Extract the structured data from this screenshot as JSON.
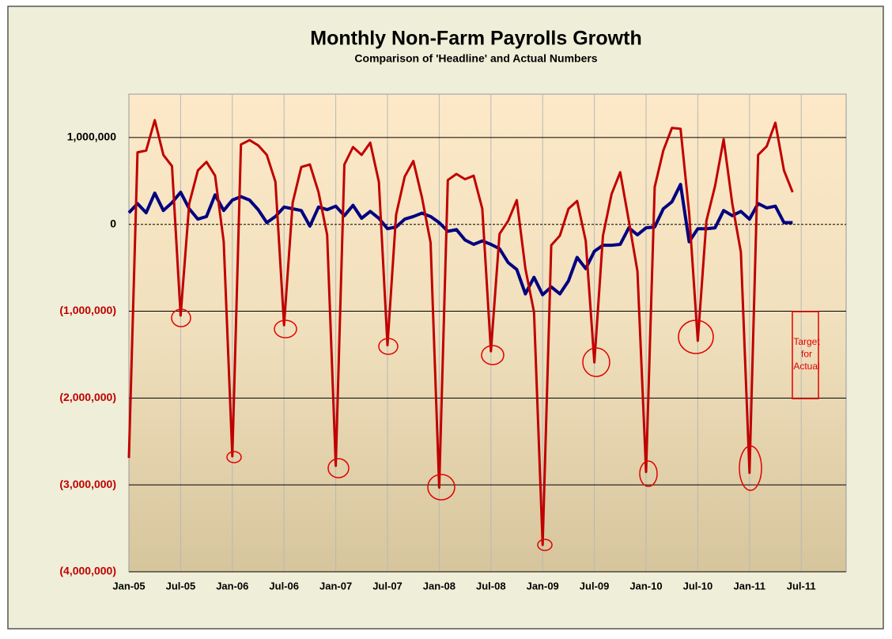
{
  "chart_data": {
    "type": "line",
    "title": "Monthly Non-Farm Payrolls Growth",
    "subtitle": "Comparison of 'Headline' and Actual Numbers",
    "categories": [
      "Jan-05",
      null,
      null,
      null,
      null,
      null,
      "Jul-05",
      null,
      null,
      null,
      null,
      null,
      "Jan-06",
      null,
      null,
      null,
      null,
      null,
      "Jul-06",
      null,
      null,
      null,
      null,
      null,
      "Jan-07",
      null,
      null,
      null,
      null,
      null,
      "Jul-07",
      null,
      null,
      null,
      null,
      null,
      "Jan-08",
      null,
      null,
      null,
      null,
      null,
      "Jul-08",
      null,
      null,
      null,
      null,
      null,
      "Jan-09",
      null,
      null,
      null,
      null,
      null,
      "Jul-09",
      null,
      null,
      null,
      null,
      null,
      "Jan-10",
      null,
      null,
      null,
      null,
      null,
      "Jul-10",
      null,
      null,
      null,
      null,
      null,
      "Jan-11",
      null,
      null,
      null,
      null,
      null,
      "Jul-11",
      null,
      null,
      null,
      null,
      null
    ],
    "series": [
      {
        "color": "#000080",
        "values": [
          134000,
          239000,
          134000,
          360000,
          160000,
          250000,
          370000,
          180000,
          60000,
          90000,
          340000,
          160000,
          280000,
          320000,
          280000,
          170000,
          20000,
          90000,
          200000,
          180000,
          160000,
          -20000,
          200000,
          170000,
          210000,
          100000,
          220000,
          70000,
          150000,
          70000,
          -50000,
          -30000,
          60000,
          90000,
          130000,
          90000,
          20000,
          -80000,
          -60000,
          -180000,
          -230000,
          -190000,
          -230000,
          -280000,
          -440000,
          -520000,
          -800000,
          -610000,
          -810000,
          -720000,
          -800000,
          -650000,
          -380000,
          -510000,
          -310000,
          -240000,
          -240000,
          -230000,
          -40000,
          -120000,
          -40000,
          -30000,
          180000,
          260000,
          460000,
          -200000,
          -50000,
          -50000,
          -40000,
          160000,
          100000,
          150000,
          60000,
          240000,
          190000,
          210000,
          20000,
          20000,
          null,
          null,
          null,
          null,
          null,
          null
        ]
      },
      {
        "color": "#c00000",
        "values": [
          -2690000,
          830000,
          850000,
          1200000,
          800000,
          670000,
          -1050000,
          240000,
          620000,
          720000,
          560000,
          -200000,
          -2670000,
          920000,
          970000,
          910000,
          800000,
          490000,
          -1160000,
          250000,
          660000,
          690000,
          370000,
          -120000,
          -2780000,
          690000,
          890000,
          800000,
          940000,
          490000,
          -1390000,
          110000,
          550000,
          730000,
          310000,
          -210000,
          -3030000,
          510000,
          580000,
          520000,
          560000,
          180000,
          -1460000,
          -110000,
          40000,
          280000,
          -510000,
          -1010000,
          -3690000,
          -240000,
          -130000,
          180000,
          270000,
          -190000,
          -1590000,
          -130000,
          350000,
          600000,
          40000,
          -540000,
          -2850000,
          430000,
          850000,
          1110000,
          1100000,
          130000,
          -1340000,
          40000,
          440000,
          980000,
          240000,
          -320000,
          -2860000,
          800000,
          900000,
          1170000,
          620000,
          370000,
          null,
          null,
          null,
          null,
          null,
          null
        ]
      }
    ],
    "ylim": [
      -4000000,
      1500000
    ],
    "yticks": [
      {
        "value": -4000000,
        "label": "(4,000,000)"
      },
      {
        "value": -3000000,
        "label": "(3,000,000)"
      },
      {
        "value": -2000000,
        "label": "(2,000,000)"
      },
      {
        "value": -1000000,
        "label": "(1,000,000)"
      },
      0,
      {
        "value": 1000000,
        "label": "1,000,000"
      }
    ],
    "grid": true,
    "negative_tick_color": "#c00000",
    "annotation": [
      "Target",
      "for",
      "Actual"
    ]
  }
}
